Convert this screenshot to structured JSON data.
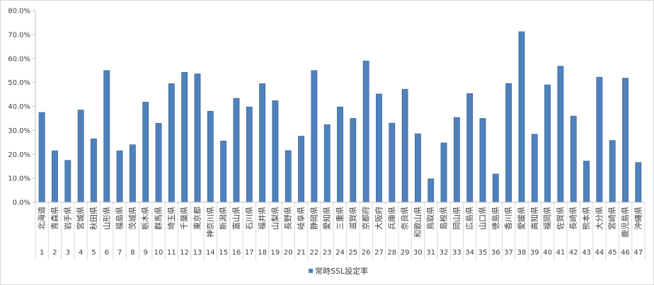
{
  "chart_data": {
    "type": "bar",
    "categories": [
      "北海道",
      "青森県",
      "岩手県",
      "宮城県",
      "秋田県",
      "山形県",
      "福島県",
      "茨城県",
      "栃木県",
      "群馬県",
      "埼玉県",
      "千葉県",
      "東京都",
      "神奈川県",
      "新潟県",
      "富山県",
      "石川県",
      "福井県",
      "山梨県",
      "長野県",
      "岐阜県",
      "静岡県",
      "愛知県",
      "三重県",
      "滋賀県",
      "京都府",
      "大阪府",
      "兵庫県",
      "奈良県",
      "和歌山県",
      "鳥取県",
      "島根県",
      "岡山県",
      "広島県",
      "山口県",
      "徳島県",
      "香川県",
      "愛媛県",
      "高知県",
      "福岡県",
      "佐賀県",
      "長崎県",
      "熊本県",
      "大分県",
      "宮崎県",
      "鹿児島県",
      "沖縄県"
    ],
    "index_labels": [
      "1",
      "2",
      "3",
      "4",
      "5",
      "6",
      "7",
      "8",
      "9",
      "10",
      "11",
      "12",
      "13",
      "14",
      "15",
      "16",
      "17",
      "18",
      "19",
      "20",
      "21",
      "22",
      "23",
      "24",
      "25",
      "26",
      "27",
      "28",
      "29",
      "30",
      "31",
      "32",
      "33",
      "34",
      "35",
      "36",
      "37",
      "38",
      "39",
      "40",
      "41",
      "42",
      "43",
      "44",
      "45",
      "46",
      "47"
    ],
    "series": [
      {
        "name": "常時SSL設定率",
        "color": "#4f81bd",
        "values": [
          37.5,
          21.5,
          17.5,
          38.5,
          26.5,
          55.0,
          21.5,
          24.0,
          41.8,
          33.0,
          49.5,
          54.2,
          53.6,
          38.0,
          25.6,
          43.4,
          39.8,
          49.5,
          42.4,
          21.6,
          27.6,
          55.0,
          32.4,
          39.8,
          35.0,
          59.0,
          45.2,
          33.0,
          47.2,
          28.6,
          9.8,
          24.8,
          35.4,
          45.4,
          35.0,
          11.8,
          49.6,
          71.2,
          28.4,
          49.0,
          56.8,
          36.0,
          17.2,
          52.2,
          25.8,
          51.8,
          16.6
        ]
      }
    ],
    "y_ticks": [
      "0.0%",
      "10.0%",
      "20.0%",
      "30.0%",
      "40.0%",
      "50.0%",
      "60.0%",
      "70.0%",
      "80.0%"
    ],
    "ylim": [
      0,
      80
    ],
    "grid": false,
    "legend_position": "bottom"
  }
}
